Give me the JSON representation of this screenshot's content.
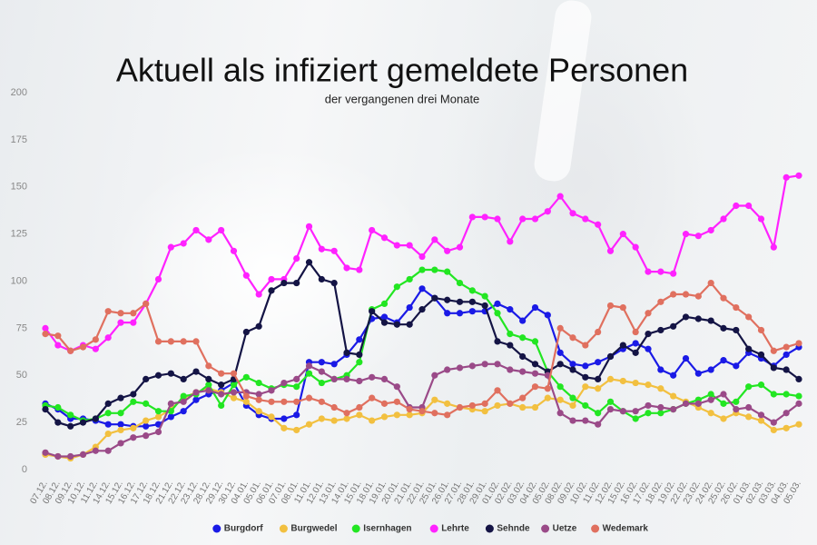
{
  "chart_data": {
    "type": "line",
    "title": "Aktuell als infiziert gemeldete Personen",
    "subtitle": "der vergangenen drei Monate",
    "categories": [
      "07.12.",
      "08.12.",
      "09.12.",
      "10.12.",
      "11.12.",
      "14.12.",
      "15.12.",
      "16.12.",
      "17.12.",
      "18.12.",
      "21.12.",
      "22.12.",
      "23.12.",
      "28.12.",
      "29.12.",
      "30.12.",
      "04.01.",
      "05.01.",
      "06.01.",
      "07.01.",
      "08.01.",
      "11.01.",
      "12.01.",
      "13.01.",
      "14.01.",
      "15.01.",
      "18.01.",
      "19.01.",
      "20.01.",
      "21.01.",
      "22.01.",
      "25.01.",
      "26.01.",
      "27.01.",
      "28.01.",
      "29.01.",
      "01.02.",
      "02.02.",
      "03.02.",
      "04.02.",
      "05.02.",
      "08.02.",
      "09.02.",
      "10.02.",
      "11.02.",
      "12.02.",
      "15.02.",
      "16.02.",
      "17.02.",
      "18.02.",
      "19.02.",
      "22.02.",
      "23.02.",
      "24.02.",
      "25.02.",
      "26.02.",
      "01.03.",
      "02.03.",
      "03.03.",
      "04.03.",
      "05.03."
    ],
    "ylim": [
      0,
      200
    ],
    "yticks": [
      0,
      25,
      50,
      75,
      100,
      125,
      150,
      175,
      200
    ],
    "grid": false,
    "legend": "bottom",
    "series": [
      {
        "name": "Burgdorf",
        "color": "#1a1ae6",
        "values": [
          35,
          32,
          27,
          27,
          26,
          24,
          24,
          23,
          23,
          24,
          28,
          31,
          37,
          40,
          42,
          46,
          34,
          29,
          27,
          27,
          29,
          57,
          57,
          56,
          61,
          69,
          80,
          81,
          78,
          86,
          96,
          91,
          83,
          83,
          84,
          84,
          88,
          85,
          79,
          86,
          82,
          62,
          56,
          55,
          57,
          60,
          64,
          67,
          64,
          53,
          50,
          59,
          51,
          53,
          58,
          55,
          62,
          59,
          55,
          61,
          65
        ]
      },
      {
        "name": "Burgwedel",
        "color": "#f2c040",
        "values": [
          8,
          7,
          6,
          8,
          12,
          19,
          21,
          22,
          26,
          28,
          32,
          38,
          41,
          43,
          41,
          38,
          36,
          31,
          28,
          22,
          21,
          24,
          27,
          26,
          27,
          29,
          26,
          28,
          29,
          29,
          30,
          37,
          35,
          33,
          32,
          31,
          34,
          35,
          33,
          33,
          38,
          37,
          34,
          44,
          43,
          48,
          47,
          46,
          45,
          43,
          39,
          36,
          33,
          30,
          27,
          30,
          28,
          26,
          21,
          22,
          24
        ]
      },
      {
        "name": "Isernhagen",
        "color": "#22e622",
        "values": [
          34,
          33,
          29,
          26,
          27,
          30,
          30,
          36,
          35,
          31,
          31,
          39,
          40,
          45,
          34,
          45,
          49,
          46,
          43,
          45,
          44,
          51,
          46,
          48,
          50,
          57,
          85,
          88,
          97,
          101,
          106,
          106,
          105,
          99,
          95,
          92,
          83,
          72,
          70,
          68,
          52,
          44,
          38,
          34,
          30,
          36,
          31,
          27,
          30,
          30,
          32,
          35,
          37,
          40,
          35,
          36,
          44,
          45,
          40,
          40,
          39
        ]
      },
      {
        "name": "Lehrte",
        "color": "#ff22ff",
        "values": [
          75,
          66,
          63,
          66,
          64,
          70,
          78,
          78,
          88,
          101,
          118,
          120,
          127,
          122,
          127,
          116,
          103,
          93,
          101,
          101,
          112,
          129,
          117,
          116,
          107,
          106,
          127,
          123,
          119,
          119,
          113,
          122,
          116,
          118,
          134,
          134,
          133,
          121,
          133,
          133,
          137,
          145,
          136,
          133,
          130,
          116,
          125,
          118,
          105,
          105,
          104,
          125,
          124,
          127,
          133,
          140,
          140,
          133,
          118,
          155,
          156
        ]
      },
      {
        "name": "Sehnde",
        "color": "#141445",
        "values": [
          32,
          25,
          23,
          25,
          27,
          35,
          38,
          40,
          48,
          50,
          51,
          48,
          52,
          48,
          45,
          48,
          73,
          76,
          95,
          99,
          99,
          110,
          101,
          99,
          62,
          61,
          84,
          78,
          77,
          77,
          85,
          91,
          90,
          89,
          89,
          87,
          68,
          66,
          60,
          56,
          52,
          56,
          53,
          49,
          48,
          60,
          66,
          62,
          72,
          74,
          76,
          81,
          80,
          79,
          75,
          74,
          64,
          61,
          54,
          53,
          48
        ]
      },
      {
        "name": "Uetze",
        "color": "#9a4a88",
        "values": [
          9,
          7,
          7,
          8,
          10,
          10,
          14,
          17,
          18,
          20,
          35,
          36,
          41,
          42,
          40,
          41,
          41,
          40,
          42,
          46,
          48,
          55,
          52,
          48,
          48,
          47,
          49,
          48,
          44,
          33,
          33,
          50,
          53,
          54,
          55,
          56,
          56,
          53,
          52,
          51,
          50,
          30,
          26,
          26,
          24,
          32,
          31,
          31,
          34,
          33,
          32,
          35,
          35,
          37,
          40,
          32,
          33,
          29,
          25,
          30,
          35
        ]
      },
      {
        "name": "Wedemark",
        "color": "#e0705f",
        "values": [
          72,
          71,
          63,
          65,
          69,
          84,
          83,
          83,
          88,
          68,
          68,
          68,
          68,
          55,
          51,
          51,
          39,
          37,
          36,
          36,
          36,
          38,
          36,
          33,
          30,
          33,
          38,
          35,
          36,
          32,
          31,
          30,
          29,
          33,
          34,
          35,
          42,
          35,
          38,
          44,
          43,
          75,
          70,
          66,
          73,
          87,
          86,
          73,
          83,
          89,
          93,
          93,
          92,
          99,
          91,
          86,
          81,
          74,
          63,
          65,
          67
        ]
      }
    ]
  }
}
